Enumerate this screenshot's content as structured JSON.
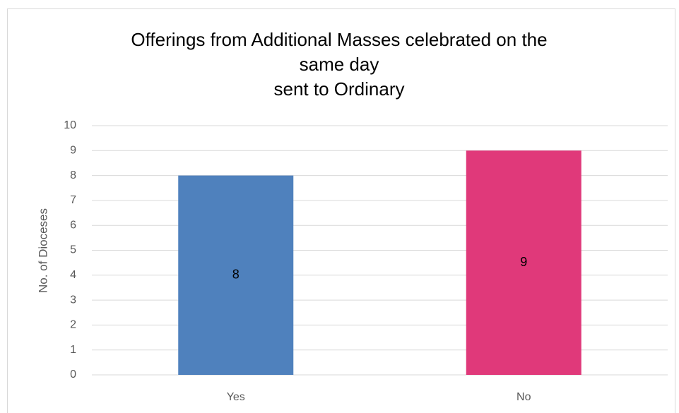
{
  "chart_data": {
    "type": "bar",
    "title": [
      "Offerings from Additional Masses celebrated on the",
      "same day",
      "sent to Ordinary"
    ],
    "ylabel": "No. of Dioceses",
    "categories": [
      "Yes",
      "No"
    ],
    "values": [
      8,
      9
    ],
    "colors": [
      "#4f81bd",
      "#e0397a"
    ],
    "ylim": [
      0,
      10
    ],
    "yticks": [
      0,
      1,
      2,
      3,
      4,
      5,
      6,
      7,
      8,
      9,
      10
    ],
    "grid": true,
    "data_labels": true
  }
}
